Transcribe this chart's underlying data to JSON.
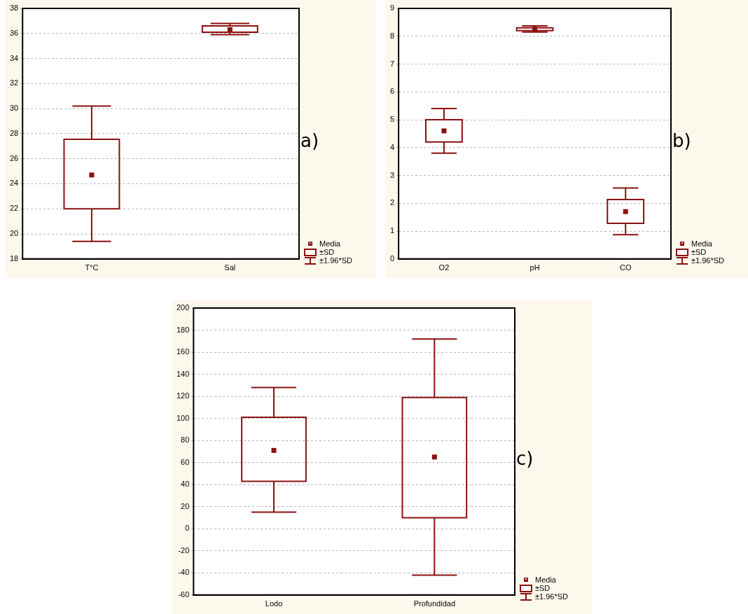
{
  "chart_data": [
    {
      "type": "box",
      "categories": [
        "T°C",
        "Sal"
      ],
      "ylim": [
        18,
        38
      ],
      "yticks": [
        18,
        20,
        22,
        24,
        26,
        28,
        30,
        32,
        34,
        36,
        38
      ],
      "grid": "y",
      "annotations": [
        "a)",
        "Media",
        "±SD",
        "±1.96*SD"
      ],
      "series": [
        {
          "color": "#8b1010",
          "boxes": [
            {
              "low": 19.4,
              "q1": 22.0,
              "median": 24.7,
              "q3": 27.55,
              "high": 30.2
            },
            {
              "low": 35.9,
              "q1": 36.1,
              "median": 36.3,
              "q3": 36.6,
              "high": 36.8
            }
          ]
        }
      ]
    },
    {
      "type": "box",
      "categories": [
        "O2",
        "pH",
        "CO"
      ],
      "ylim": [
        0,
        9
      ],
      "yticks": [
        0,
        1,
        2,
        3,
        4,
        5,
        6,
        7,
        8,
        9
      ],
      "grid": "y",
      "annotations": [
        "b)",
        "Media",
        "±SD",
        "±1.96*SD"
      ],
      "series": [
        {
          "color": "#8b1010",
          "boxes": [
            {
              "low": 3.8,
              "q1": 4.2,
              "median": 4.6,
              "q3": 5.0,
              "high": 5.4
            },
            {
              "low": 8.15,
              "q1": 8.2,
              "median": 8.25,
              "q3": 8.3,
              "high": 8.37
            },
            {
              "low": 0.87,
              "q1": 1.28,
              "median": 1.7,
              "q3": 2.13,
              "high": 2.55
            }
          ]
        }
      ]
    },
    {
      "type": "box",
      "categories": [
        "Lodo",
        "Profundidad"
      ],
      "ylim": [
        -60,
        200
      ],
      "yticks": [
        -60,
        -40,
        -20,
        0,
        20,
        40,
        60,
        80,
        100,
        120,
        140,
        160,
        180,
        200
      ],
      "grid": "y",
      "annotations": [
        "c)",
        "Media",
        "±SD",
        "±1.96*SD"
      ],
      "series": [
        {
          "color": "#8b1010",
          "boxes": [
            {
              "low": 15,
              "q1": 43,
              "median": 71,
              "q3": 101,
              "high": 128
            },
            {
              "low": -42,
              "q1": 10,
              "median": 65,
              "q3": 119,
              "high": 172
            }
          ]
        }
      ]
    }
  ]
}
